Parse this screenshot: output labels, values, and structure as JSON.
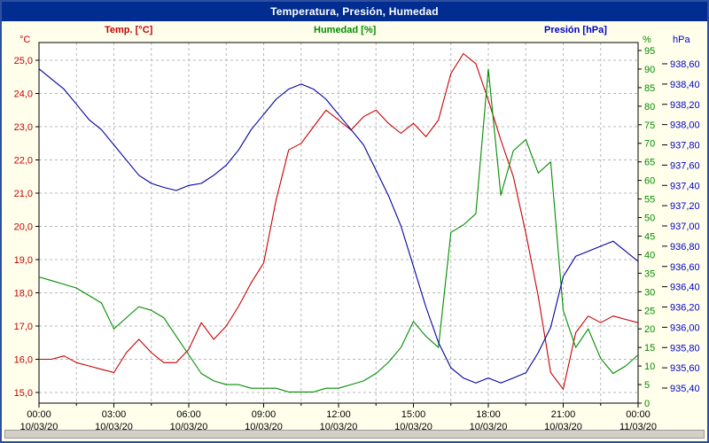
{
  "window": {
    "title": "Temperatura, Presión, Humedad"
  },
  "colors": {
    "titlebar_bg": "#002D8F",
    "titlebar_text": "#FFFFFF",
    "background": "#FFFFEC",
    "plot_background": "#FFFFFF",
    "grid": "#B8B8B8",
    "frame": "#2E4FA0",
    "temp": "#C80000",
    "humidity": "#008C00",
    "pressure_line": "#0000A0",
    "pressure_label": "#0000C8"
  },
  "chart_data": {
    "type": "line",
    "title": "Temperatura, Presión, Humedad",
    "grid": true,
    "x_start_hour": 0,
    "x_end_hour": 24,
    "sample_interval_hours": 0.5,
    "x_axis": {
      "time_labels": [
        "00:00",
        "03:00",
        "06:00",
        "09:00",
        "12:00",
        "15:00",
        "18:00",
        "21:00",
        "00:00"
      ],
      "date_labels": [
        "10/03/20",
        "10/03/20",
        "10/03/20",
        "10/03/20",
        "10/03/20",
        "10/03/20",
        "10/03/20",
        "10/03/20",
        "11/03/20"
      ],
      "label_interval_hours": 3,
      "gridline_interval_hours": 1.5
    },
    "axes": {
      "temp": {
        "unit": "°C",
        "min": 15.0,
        "max": 25.0,
        "tick_step": 1.0,
        "side": "left",
        "color": "#C80000",
        "tick_labels": [
          "25,0",
          "24,0",
          "23,0",
          "22,0",
          "21,0",
          "20,0",
          "19,0",
          "18,0",
          "17,0",
          "16,0",
          "15,0"
        ]
      },
      "humidity": {
        "unit": "%",
        "min": 0,
        "max": 95,
        "tick_step": 5,
        "side": "right-inner",
        "color": "#008C00",
        "tick_labels": [
          "95",
          "90",
          "85",
          "80",
          "75",
          "70",
          "65",
          "60",
          "55",
          "50",
          "45",
          "40",
          "35",
          "30",
          "25",
          "20",
          "15",
          "10",
          "5",
          "0"
        ]
      },
      "pressure": {
        "unit": "hPa",
        "min": 935.4,
        "max": 938.6,
        "tick_step": 0.2,
        "side": "right-outer",
        "color": "#0000C8",
        "tick_labels": [
          "938,60",
          "938,40",
          "938,20",
          "938,00",
          "937,80",
          "937,60",
          "937,40",
          "937,20",
          "937,00",
          "936,80",
          "936,60",
          "936,40",
          "936,20",
          "936,00",
          "935,80",
          "935,60",
          "935,40"
        ]
      }
    },
    "series": [
      {
        "name": "Temp. [°C]",
        "axis": "temp",
        "color": "#C80000",
        "values": [
          16.0,
          16.0,
          16.1,
          15.9,
          15.8,
          15.7,
          15.6,
          16.2,
          16.6,
          16.2,
          15.9,
          15.9,
          16.3,
          17.1,
          16.6,
          17.0,
          17.6,
          18.3,
          18.9,
          20.8,
          22.3,
          22.5,
          23.0,
          23.5,
          23.2,
          22.9,
          23.3,
          23.5,
          23.1,
          22.8,
          23.1,
          22.7,
          23.2,
          24.6,
          25.2,
          24.9,
          23.8,
          22.6,
          21.5,
          19.8,
          17.9,
          15.6,
          15.1,
          16.8,
          17.3,
          17.1,
          17.3,
          17.2,
          17.1
        ]
      },
      {
        "name": "Humedad [%]",
        "axis": "humidity",
        "color": "#008C00",
        "values": [
          34,
          33,
          32,
          31,
          29,
          27,
          20,
          23,
          26,
          25,
          23,
          18,
          13,
          8,
          6,
          5,
          5,
          4,
          4,
          4,
          3,
          3,
          3,
          4,
          4,
          5,
          6,
          8,
          11,
          15,
          22,
          18,
          15,
          46,
          48,
          51,
          90,
          56,
          68,
          71,
          62,
          65,
          25,
          15,
          20,
          12,
          8,
          10,
          13
        ]
      },
      {
        "name": "Presión [hPa]",
        "axis": "pressure",
        "color": "#0000A0",
        "values": [
          938.55,
          938.45,
          938.35,
          938.2,
          938.05,
          937.95,
          937.8,
          937.65,
          937.5,
          937.42,
          937.38,
          937.35,
          937.4,
          937.42,
          937.5,
          937.6,
          937.75,
          937.95,
          938.1,
          938.25,
          938.35,
          938.4,
          938.35,
          938.25,
          938.1,
          937.95,
          937.8,
          937.55,
          937.3,
          937.0,
          936.6,
          936.2,
          935.85,
          935.6,
          935.5,
          935.45,
          935.5,
          935.45,
          935.5,
          935.55,
          935.75,
          936.0,
          936.5,
          936.7,
          936.75,
          936.8,
          936.85,
          936.75,
          936.65
        ]
      }
    ]
  }
}
